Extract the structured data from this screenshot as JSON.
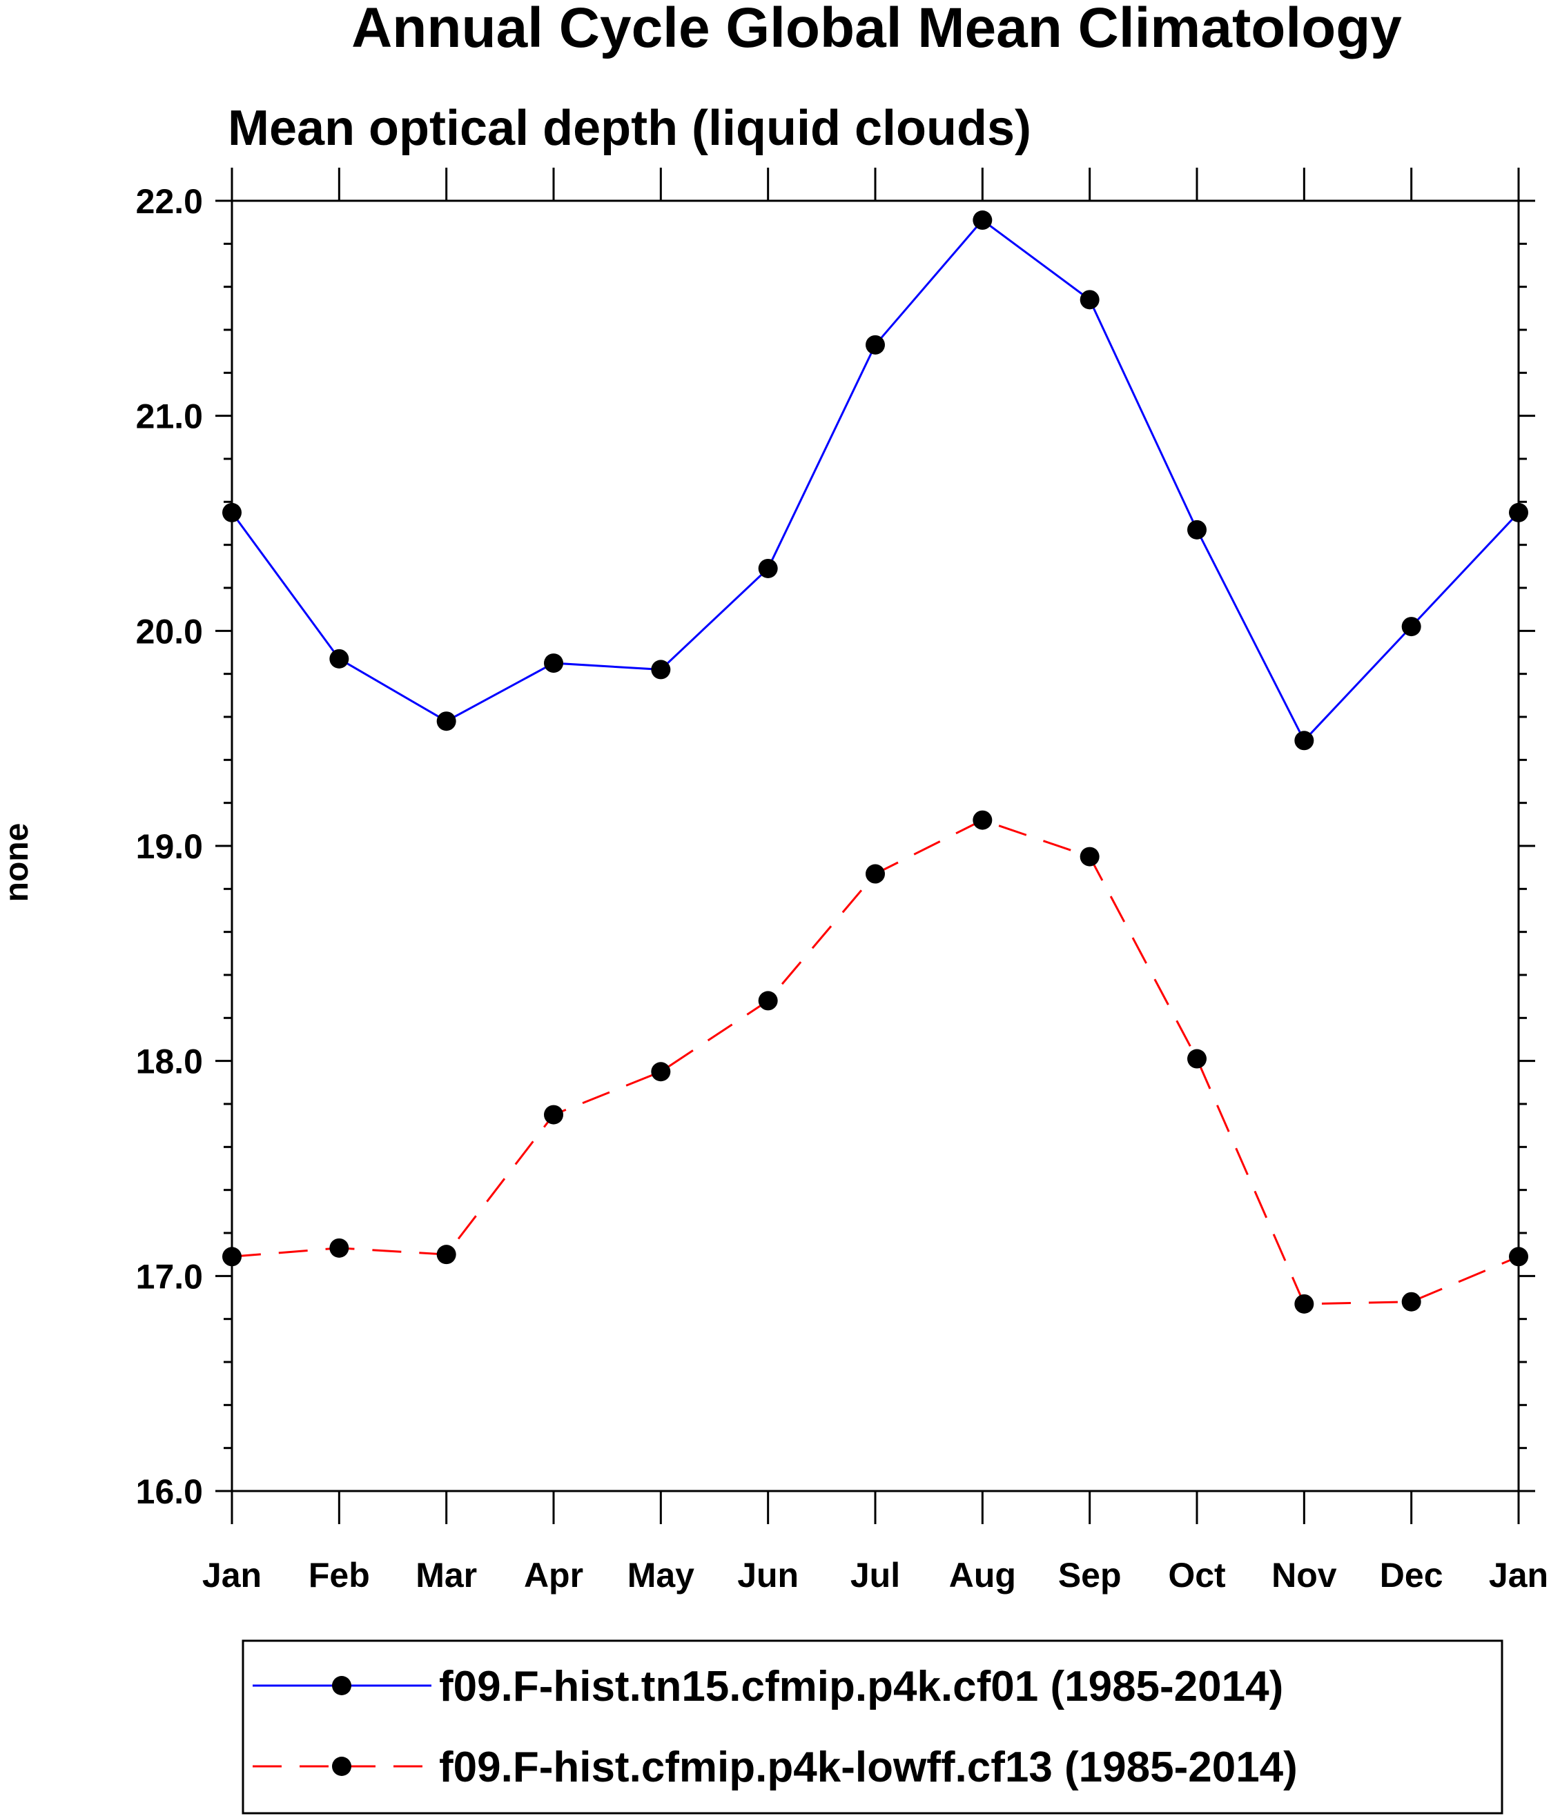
{
  "chart_data": {
    "type": "line",
    "title": "Annual Cycle Global Mean Climatology",
    "subtitle": "Mean optical depth (liquid clouds)",
    "xlabel": "",
    "ylabel": "none",
    "categories": [
      "Jan",
      "Feb",
      "Mar",
      "Apr",
      "May",
      "Jun",
      "Jul",
      "Aug",
      "Sep",
      "Oct",
      "Nov",
      "Dec",
      "Jan"
    ],
    "ylim": [
      16.0,
      22.0
    ],
    "yticks": [
      "16.0",
      "17.0",
      "18.0",
      "19.0",
      "20.0",
      "21.0",
      "22.0"
    ],
    "grid": false,
    "legend_position": "bottom",
    "series": [
      {
        "name": "f09.F-hist.tn15.cfmip.p4k.cf01 (1985-2014)",
        "color": "#0000ff",
        "line_style": "solid",
        "marker": "filled-circle",
        "values": [
          20.55,
          19.87,
          19.58,
          19.85,
          19.82,
          20.29,
          21.33,
          21.91,
          21.54,
          20.47,
          19.49,
          20.02,
          20.55
        ]
      },
      {
        "name": "f09.F-hist.cfmip.p4k-lowff.cf13 (1985-2014)",
        "color": "#ff0000",
        "line_style": "dashed",
        "marker": "filled-circle",
        "values": [
          17.09,
          17.13,
          17.1,
          17.75,
          17.95,
          18.28,
          18.87,
          19.12,
          18.95,
          18.01,
          16.87,
          16.88,
          17.09
        ]
      }
    ]
  }
}
